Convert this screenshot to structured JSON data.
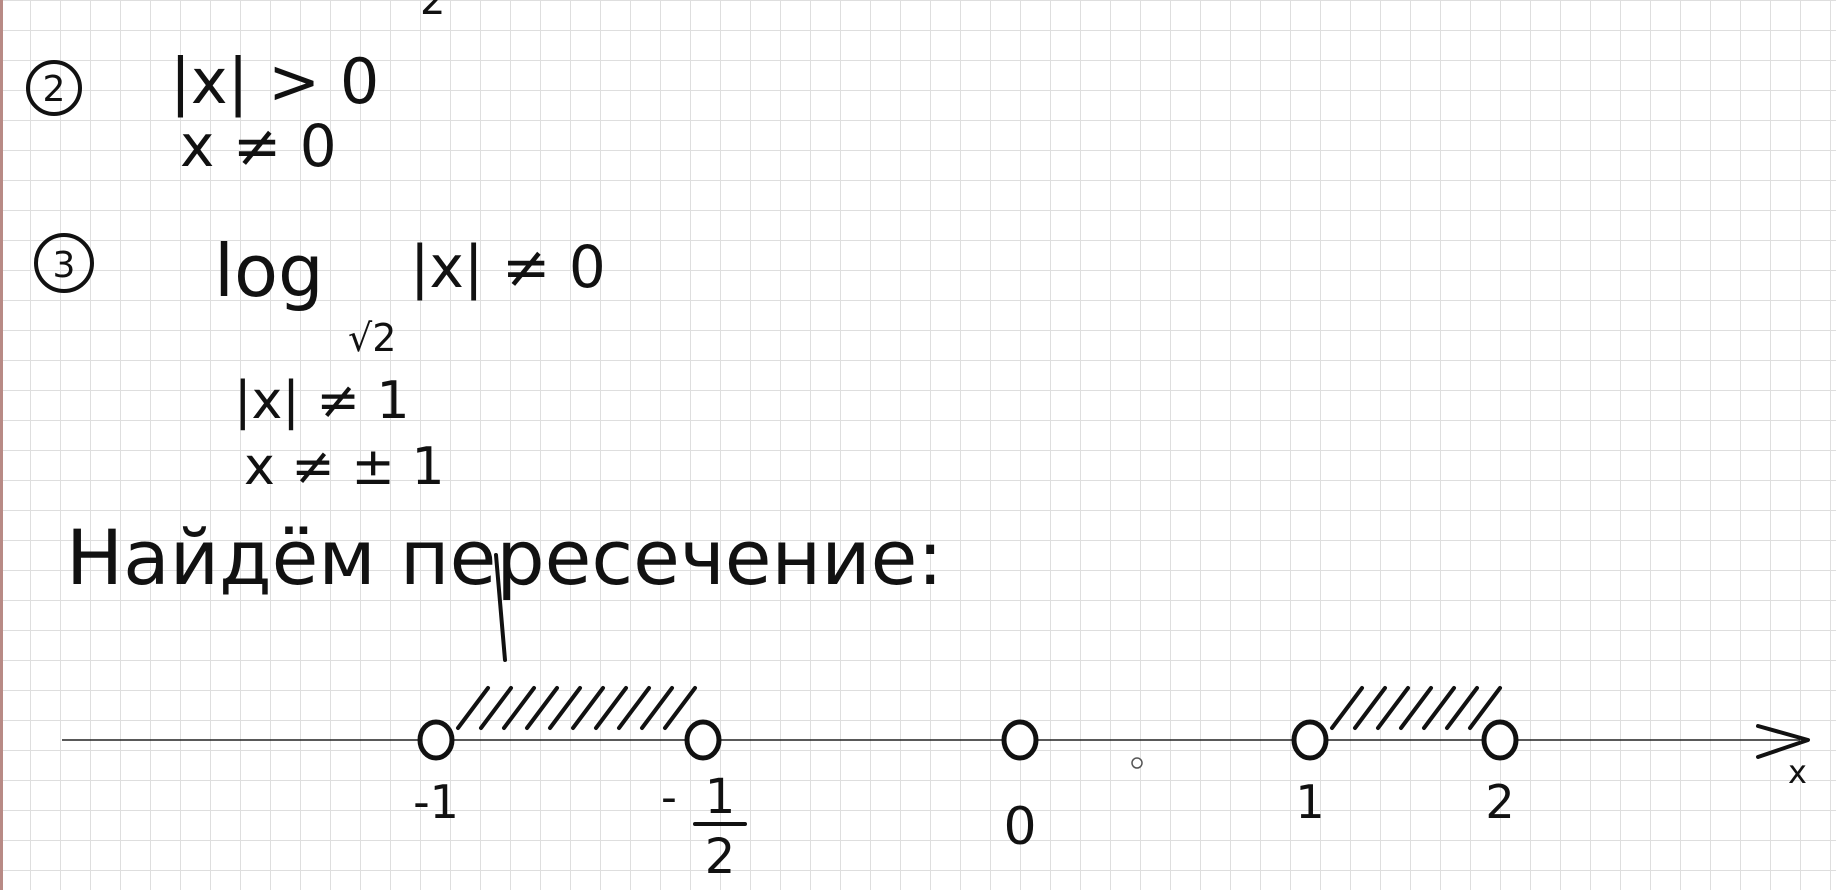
{
  "top_fragment": "2",
  "condition_2": {
    "number": "2",
    "line1": "|x| > 0",
    "line2": "x ≠ 0"
  },
  "condition_3": {
    "number": "3",
    "log_word": "log",
    "log_base": "√2",
    "log_argument": "|x| ≠ 0",
    "line2": "|x| ≠ 1",
    "line3": "x ≠ ± 1"
  },
  "intersection_heading": "Найдём пересечение:",
  "number_line": {
    "axis_label": "x",
    "points": [
      {
        "value": -1,
        "label": "-1",
        "open": true
      },
      {
        "value": -0.5,
        "label": "-1/2",
        "label_numerator": "1",
        "label_denominator": "2",
        "open": true
      },
      {
        "value": 0,
        "label": "0",
        "open": true
      },
      {
        "value": 1,
        "label": "1",
        "open": true
      },
      {
        "value": 2,
        "label": "2",
        "open": true
      }
    ],
    "hatched_intervals": [
      {
        "from": -1,
        "to": -0.5
      },
      {
        "from": 1,
        "to": 2
      }
    ]
  }
}
